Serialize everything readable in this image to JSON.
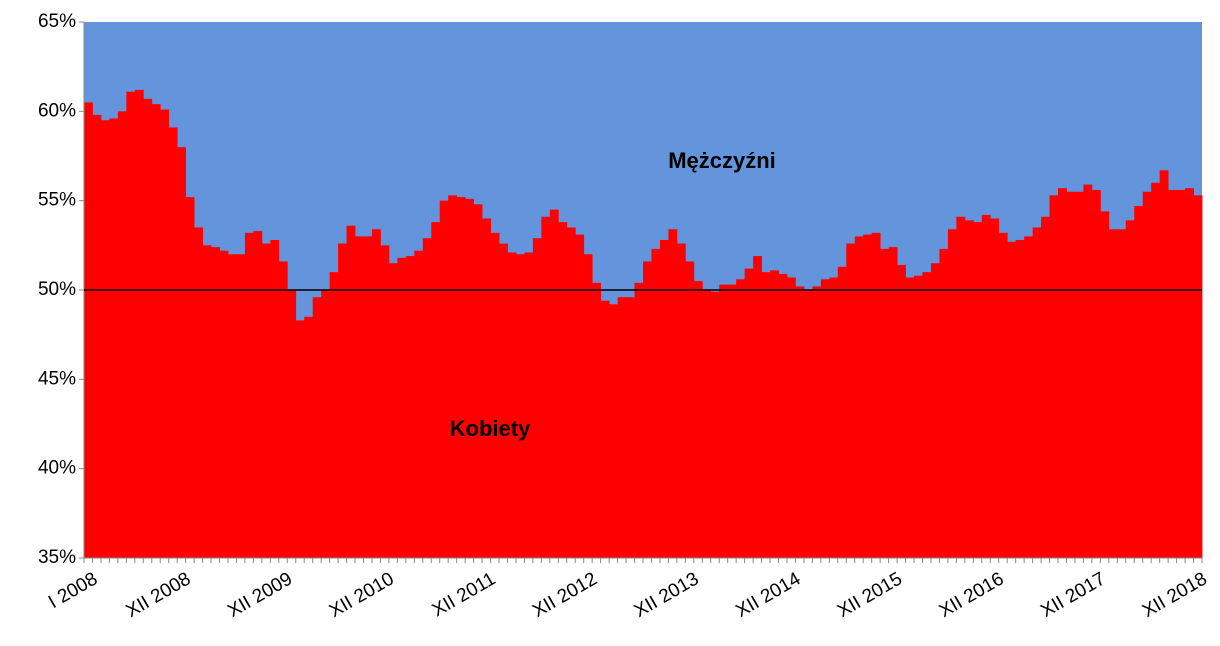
{
  "chart_data": {
    "type": "bar",
    "categories": [
      "I 2008",
      null,
      null,
      null,
      null,
      null,
      null,
      null,
      null,
      null,
      null,
      "XII 2008",
      null,
      null,
      null,
      null,
      null,
      null,
      null,
      null,
      null,
      null,
      null,
      "XII 2009",
      null,
      null,
      null,
      null,
      null,
      null,
      null,
      null,
      null,
      null,
      null,
      "XII 2010",
      null,
      null,
      null,
      null,
      null,
      null,
      null,
      null,
      null,
      null,
      null,
      "XII 2011",
      null,
      null,
      null,
      null,
      null,
      null,
      null,
      null,
      null,
      null,
      null,
      "XII 2012",
      null,
      null,
      null,
      null,
      null,
      null,
      null,
      null,
      null,
      null,
      null,
      "XII 2013",
      null,
      null,
      null,
      null,
      null,
      null,
      null,
      null,
      null,
      null,
      null,
      "XII 2014",
      null,
      null,
      null,
      null,
      null,
      null,
      null,
      null,
      null,
      null,
      null,
      "XII 2015",
      null,
      null,
      null,
      null,
      null,
      null,
      null,
      null,
      null,
      null,
      null,
      "XII 2016",
      null,
      null,
      null,
      null,
      null,
      null,
      null,
      null,
      null,
      null,
      null,
      "XII 2017",
      null,
      null,
      null,
      null,
      null,
      null,
      null,
      null,
      null,
      null,
      null,
      "XII 2018"
    ],
    "values": [
      60.5,
      59.8,
      59.5,
      59.6,
      60.0,
      61.1,
      61.2,
      60.7,
      60.4,
      60.1,
      59.1,
      58.0,
      55.2,
      53.5,
      52.5,
      52.4,
      52.2,
      52.0,
      52.0,
      53.2,
      53.3,
      52.6,
      52.8,
      51.6,
      50.0,
      48.3,
      48.5,
      49.6,
      50.0,
      51.0,
      52.6,
      53.6,
      53.0,
      53.0,
      53.4,
      52.5,
      51.5,
      51.8,
      51.9,
      52.2,
      52.9,
      53.8,
      55.0,
      55.3,
      55.2,
      55.1,
      54.8,
      54.0,
      53.2,
      52.6,
      52.1,
      52.0,
      52.1,
      52.9,
      54.1,
      54.5,
      53.8,
      53.5,
      53.1,
      52.0,
      50.4,
      49.4,
      49.2,
      49.6,
      49.6,
      50.4,
      51.6,
      52.3,
      52.8,
      53.4,
      52.6,
      51.6,
      50.5,
      50.0,
      49.9,
      50.3,
      50.3,
      50.6,
      51.2,
      51.9,
      51.0,
      51.1,
      50.9,
      50.7,
      50.2,
      50.0,
      50.2,
      50.6,
      50.7,
      51.3,
      52.6,
      53.0,
      53.1,
      53.2,
      52.3,
      52.4,
      51.4,
      50.7,
      50.8,
      51.0,
      51.5,
      52.3,
      53.4,
      54.1,
      53.9,
      53.8,
      54.2,
      54.0,
      53.2,
      52.7,
      52.8,
      53.0,
      53.5,
      54.1,
      55.3,
      55.7,
      55.5,
      55.5,
      55.9,
      55.6,
      54.4,
      53.4,
      53.4,
      53.9,
      54.7,
      55.5,
      56.0,
      56.7,
      55.6,
      55.6,
      55.7,
      55.3
    ],
    "color": "#ff0000",
    "background_color": "#6495dc",
    "ylim": [
      35,
      65
    ],
    "yticks": [
      {
        "value": 35,
        "label": "35%"
      },
      {
        "value": 40,
        "label": "40%"
      },
      {
        "value": 45,
        "label": "45%"
      },
      {
        "value": 50,
        "label": "50%"
      },
      {
        "value": 55,
        "label": "55%"
      },
      {
        "value": 60,
        "label": "60%"
      },
      {
        "value": 65,
        "label": "65%"
      }
    ],
    "reference_line": 50,
    "annotations": [
      "Mężczyźni",
      "Kobiety"
    ]
  }
}
